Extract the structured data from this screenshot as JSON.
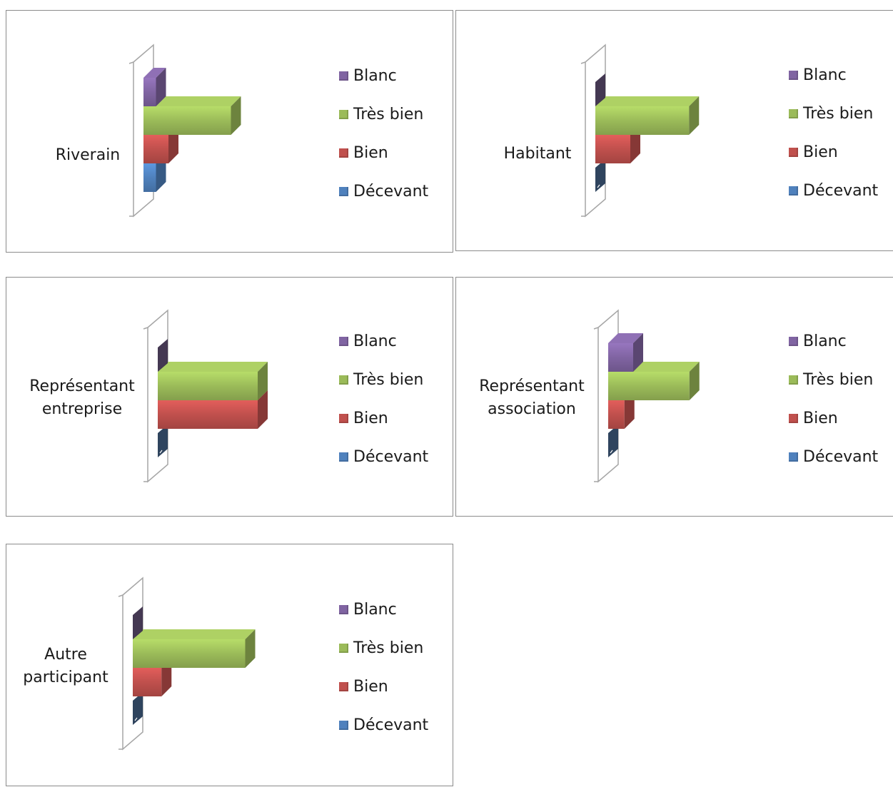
{
  "legend_labels": [
    "Blanc",
    "Très bien",
    "Bien",
    "Décevant"
  ],
  "colors": {
    "Blanc": "#8064a2",
    "Très bien": "#9bbb59",
    "Bien": "#c0504d",
    "Décevant": "#4f81bd"
  },
  "chart_data": [
    {
      "type": "bar",
      "category_lines": [
        "Riverain"
      ],
      "series": [
        {
          "name": "Blanc",
          "value": 1
        },
        {
          "name": "Très bien",
          "value": 7
        },
        {
          "name": "Bien",
          "value": 2
        },
        {
          "name": "Décevant",
          "value": 1
        }
      ],
      "xlim": [
        0,
        10
      ]
    },
    {
      "type": "bar",
      "category_lines": [
        "Habitant"
      ],
      "series": [
        {
          "name": "Blanc",
          "value": 0
        },
        {
          "name": "Très bien",
          "value": 7.5
        },
        {
          "name": "Bien",
          "value": 2.8
        },
        {
          "name": "Décevant",
          "value": 0
        }
      ],
      "xlim": [
        0,
        10
      ]
    },
    {
      "type": "bar",
      "category_lines": [
        "Représentant",
        "entreprise"
      ],
      "series": [
        {
          "name": "Blanc",
          "value": 0
        },
        {
          "name": "Très bien",
          "value": 8
        },
        {
          "name": "Bien",
          "value": 8
        },
        {
          "name": "Décevant",
          "value": 0
        }
      ],
      "xlim": [
        0,
        10
      ]
    },
    {
      "type": "bar",
      "category_lines": [
        "Représentant",
        "association"
      ],
      "series": [
        {
          "name": "Blanc",
          "value": 2
        },
        {
          "name": "Très bien",
          "value": 6.5
        },
        {
          "name": "Bien",
          "value": 1.3
        },
        {
          "name": "Décevant",
          "value": 0
        }
      ],
      "xlim": [
        0,
        10
      ]
    },
    {
      "type": "bar",
      "category_lines": [
        "Autre",
        "participant"
      ],
      "series": [
        {
          "name": "Blanc",
          "value": 0
        },
        {
          "name": "Très bien",
          "value": 9
        },
        {
          "name": "Bien",
          "value": 2.3
        },
        {
          "name": "Décevant",
          "value": 0
        }
      ],
      "xlim": [
        0,
        10
      ]
    }
  ]
}
